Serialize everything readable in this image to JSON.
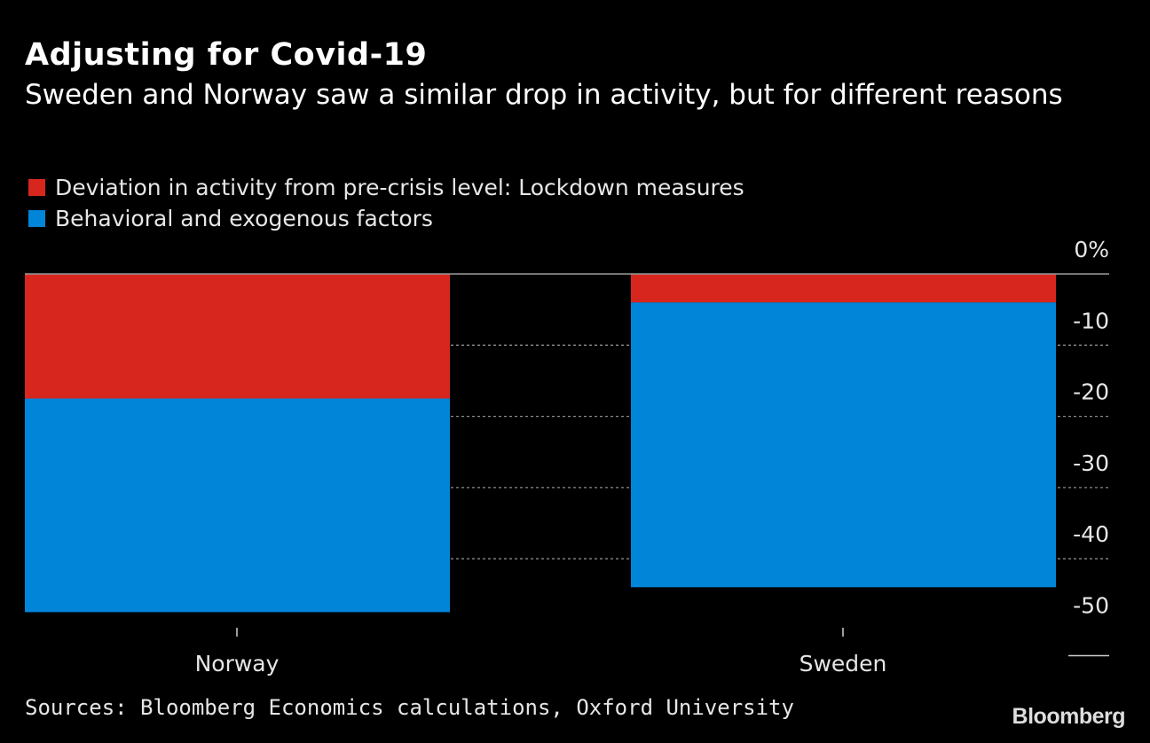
{
  "chart_data": {
    "type": "bar",
    "stacked": true,
    "title": "Adjusting for Covid-19",
    "subtitle": "Sweden and Norway saw a similar drop in activity, but for different reasons",
    "categories": [
      "Norway",
      "Sweden"
    ],
    "series": [
      {
        "name": "Deviation in activity from pre-crisis level: Lockdown measures",
        "color": "#d7261e",
        "values": [
          -17.5,
          -4
        ]
      },
      {
        "name": "Behavioral and exogenous factors",
        "color": "#0085d9",
        "values": [
          -30,
          -40
        ]
      }
    ],
    "ylim": [
      -50,
      0
    ],
    "yticks": [
      0,
      -10,
      -20,
      -30,
      -40,
      -50
    ],
    "ytick_labels": [
      "0%",
      "-10",
      "-20",
      "-30",
      "-40",
      "-50"
    ],
    "xlabel": "",
    "ylabel": "",
    "legend_position": "top-left"
  },
  "source": "Sources: Bloomberg Economics calculations, Oxford University",
  "brand": "Bloomberg"
}
